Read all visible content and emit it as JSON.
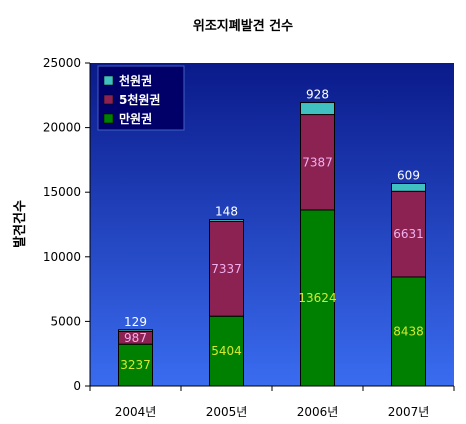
{
  "chart_data": {
    "type": "bar",
    "stacked": true,
    "title": "위조지폐발견 건수",
    "ylabel": "발견건수",
    "xlabel": "",
    "categories": [
      "2004년",
      "2005년",
      "2006년",
      "2007년"
    ],
    "ylim": [
      0,
      25000
    ],
    "yticks": [
      0,
      5000,
      10000,
      15000,
      20000,
      25000
    ],
    "series": [
      {
        "name": "만원권",
        "values": [
          3237,
          5404,
          13624,
          8438
        ],
        "color": "#008000",
        "label_color": "#d4e832"
      },
      {
        "name": "5천원권",
        "values": [
          987,
          7337,
          7387,
          6631
        ],
        "color": "#8b2252",
        "label_color": "#f0b0f0"
      },
      {
        "name": "천원권",
        "values": [
          129,
          148,
          928,
          609
        ],
        "color": "#40c0c0",
        "label_color": "#ffffff"
      }
    ],
    "legend": [
      "천원권",
      "5천원권",
      "만원권"
    ],
    "legend_position": "top-left",
    "grid": false,
    "plot_background": "#2f55d6"
  }
}
